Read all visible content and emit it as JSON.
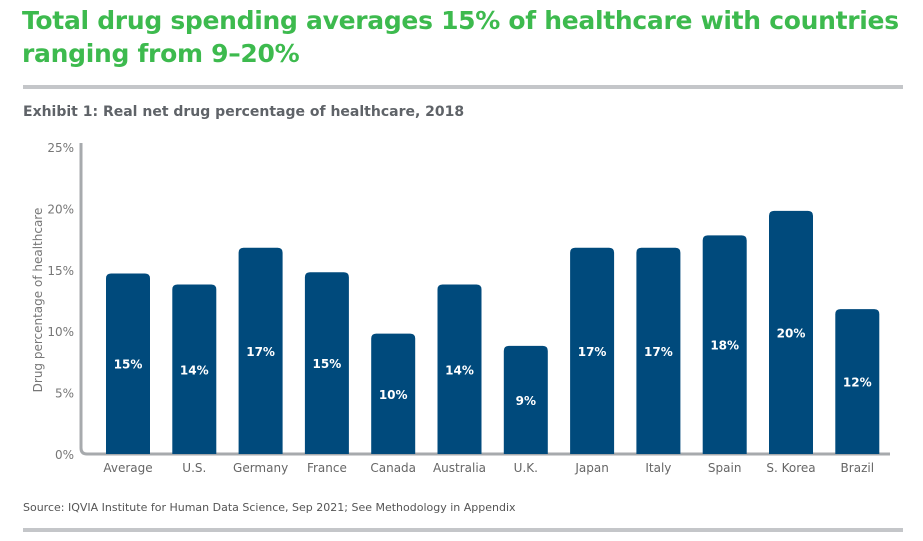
{
  "title": "Total drug spending averages 15% of healthcare with countries ranging from 9–20%",
  "subtitle": "Exhibit 1: Real net drug percentage of healthcare, 2018",
  "source": "Source: IQVIA Institute for Human Data Science, Sep 2021; See Methodology in Appendix",
  "colors": {
    "title": "#3dba4e",
    "bar": "#004a7c",
    "axis": "#a7aaad",
    "rule": "#c4c6c9"
  },
  "chart_data": {
    "type": "bar",
    "title": "Exhibit 1: Real net drug percentage of healthcare, 2018",
    "xlabel": "",
    "ylabel": "Drug percentage of healthcare",
    "ylim": [
      0,
      25
    ],
    "yticks": [
      "0%",
      "5%",
      "10%",
      "15%",
      "20%",
      "25%"
    ],
    "grid": false,
    "categories": [
      "Average",
      "U.S.",
      "Germany",
      "France",
      "Canada",
      "Australia",
      "U.K.",
      "Japan",
      "Italy",
      "Spain",
      "S. Korea",
      "Brazil"
    ],
    "values": [
      14.7,
      13.8,
      16.8,
      14.8,
      9.8,
      13.8,
      8.8,
      16.8,
      16.8,
      17.8,
      19.8,
      11.8
    ],
    "data_labels": [
      "15%",
      "14%",
      "17%",
      "15%",
      "10%",
      "14%",
      "9%",
      "17%",
      "17%",
      "18%",
      "20%",
      "12%"
    ]
  }
}
